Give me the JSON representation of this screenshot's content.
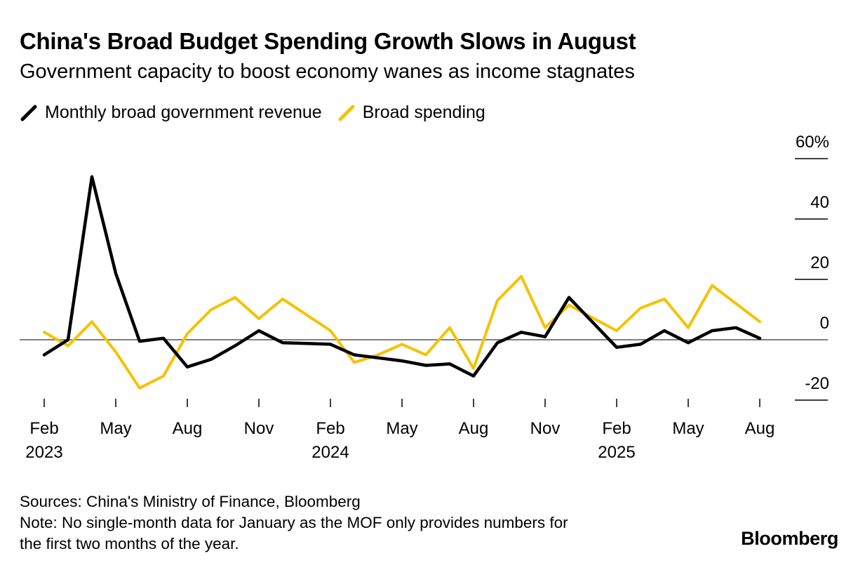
{
  "header": {
    "title": "China's Broad Budget Spending Growth Slows in August",
    "subtitle": "Government capacity to boost economy wanes as income stagnates"
  },
  "legend": [
    {
      "label": "Monthly broad government revenue",
      "color": "#000000"
    },
    {
      "label": "Broad spending",
      "color": "#F5C200"
    }
  ],
  "chart_data": {
    "type": "line",
    "title": "China's Broad Budget Spending Growth Slows in August",
    "ylabel": "",
    "xlabel": "",
    "ylim": [
      -20,
      60
    ],
    "y_ticks": [
      -20,
      0,
      20,
      40,
      60
    ],
    "y_tick_labels": [
      "-20",
      "0",
      "20",
      "40",
      "60%"
    ],
    "y_axis_position": "right",
    "x_ticks": [
      {
        "label": "Feb",
        "year": "2023",
        "index": 0
      },
      {
        "label": "May",
        "year": "",
        "index": 3
      },
      {
        "label": "Aug",
        "year": "",
        "index": 6
      },
      {
        "label": "Nov",
        "year": "",
        "index": 9
      },
      {
        "label": "Feb",
        "year": "2024",
        "index": 12
      },
      {
        "label": "May",
        "year": "",
        "index": 15
      },
      {
        "label": "Aug",
        "year": "",
        "index": 18
      },
      {
        "label": "Nov",
        "year": "",
        "index": 21
      },
      {
        "label": "Feb",
        "year": "2025",
        "index": 24
      },
      {
        "label": "May",
        "year": "",
        "index": 27
      },
      {
        "label": "Aug",
        "year": "",
        "index": 30
      }
    ],
    "x": [
      "2023-02",
      "2023-03",
      "2023-04",
      "2023-05",
      "2023-06",
      "2023-07",
      "2023-08",
      "2023-09",
      "2023-10",
      "2023-11",
      "2023-12",
      "2024-01",
      "2024-02",
      "2024-03",
      "2024-04",
      "2024-05",
      "2024-06",
      "2024-07",
      "2024-08",
      "2024-09",
      "2024-10",
      "2024-11",
      "2024-12",
      "2025-01",
      "2025-02",
      "2025-03",
      "2025-04",
      "2025-05",
      "2025-06",
      "2025-07",
      "2025-08"
    ],
    "series": [
      {
        "name": "Monthly broad government revenue",
        "color": "#000000",
        "values": [
          -5,
          0,
          54,
          22,
          -0.5,
          0.5,
          -9,
          -6.5,
          -2,
          3,
          -1,
          -1.2,
          -1.5,
          -5,
          -6,
          -7,
          -8.5,
          -8,
          -12,
          -1,
          2.5,
          1,
          14,
          null,
          -2.5,
          -1.5,
          3,
          -1,
          3,
          4,
          0.5
        ]
      },
      {
        "name": "Broad spending",
        "color": "#F5C200",
        "values": [
          2.5,
          -2,
          6,
          -4,
          -16,
          -12,
          2,
          10,
          14,
          7,
          13.5,
          null,
          3,
          -7.5,
          -5,
          -1.5,
          -5,
          4,
          -9.5,
          13,
          21,
          4,
          11.5,
          null,
          3,
          10.5,
          13.5,
          4,
          18,
          12,
          6
        ]
      }
    ]
  },
  "footer": {
    "sources": "Sources: China's Ministry of Finance, Bloomberg",
    "note_line1": "Note: No single-month data for January as the MOF only provides numbers for",
    "note_line2": "the first two months of the year."
  },
  "brand": "Bloomberg"
}
